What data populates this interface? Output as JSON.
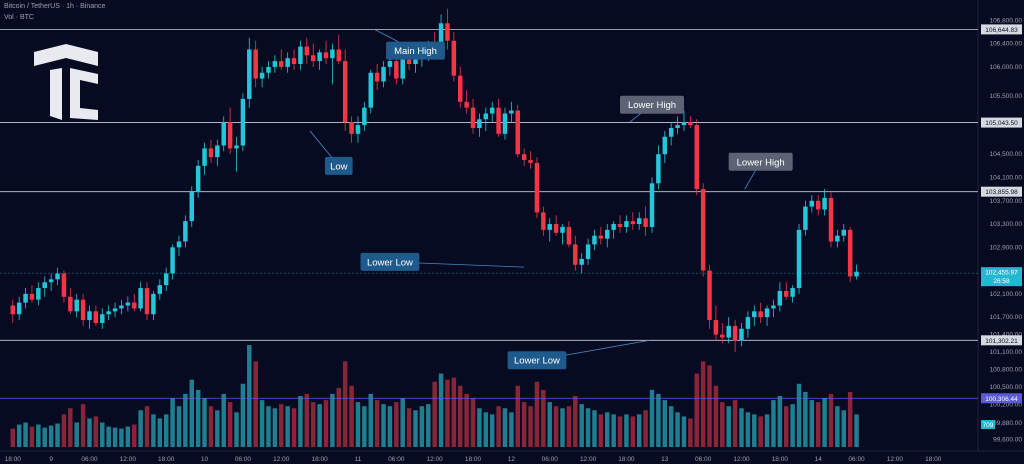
{
  "header": {
    "symbol_line": "Bitcoin / TetherUS · 1h · Binance",
    "vol_line": "Vol · BTC"
  },
  "colors": {
    "background": "#070b22",
    "up": "#26c6da",
    "down": "#f23645",
    "vol_up": "#1f7e8f",
    "vol_down": "#8a2438",
    "level_line": "#c8ccd6",
    "callout": "#1e5a8c",
    "callout_gray": "#5b6374",
    "last_price": "#22b8cf",
    "vol_line": "#5b5bd6"
  },
  "chart_data": {
    "type": "candlestick",
    "timeframe": "1h",
    "y_axis_ticks": [
      "106,800.00",
      "106,400.00",
      "106,000.00",
      "105,500.00",
      "104,500.00",
      "104,100.00",
      "103,700.00",
      "103,300.00",
      "102,900.00",
      "102,100.00",
      "101,700.00",
      "101,400.00",
      "101,100.00",
      "100,800.00",
      "100,500.00",
      "100,200.00",
      "99,880.00",
      "99,600.00"
    ],
    "y_tick_values": [
      106800,
      106400,
      106000,
      105500,
      104500,
      104100,
      103700,
      103300,
      102900,
      102100,
      101700,
      101400,
      101100,
      100800,
      100500,
      100200,
      99880,
      99600
    ],
    "x_axis_ticks": [
      "18:00",
      "9",
      "06:00",
      "12:00",
      "18:00",
      "10",
      "06:00",
      "12:00",
      "18:00",
      "11",
      "06:00",
      "12:00",
      "18:00",
      "12",
      "06:00",
      "12:00",
      "18:00",
      "13",
      "06:00",
      "12:00",
      "18:00",
      "14",
      "06:00",
      "12:00",
      "18:00"
    ],
    "x_tick_hours": [
      0,
      6,
      12,
      18,
      24,
      30,
      36,
      42,
      48,
      54,
      60,
      66,
      72,
      78,
      84,
      90,
      96,
      102,
      108,
      114,
      120,
      126,
      132,
      138,
      144
    ],
    "ylim": [
      99400,
      107150
    ],
    "xlim": [
      -2,
      151
    ],
    "price_levels": [
      {
        "value": 106644.83,
        "label": "106,644.83"
      },
      {
        "value": 105043.5,
        "label": "105,043.50"
      },
      {
        "value": 103855.98,
        "label": "103,855.98"
      },
      {
        "value": 101302.21,
        "label": "101,302.21"
      }
    ],
    "volume_level": {
      "value": 100306.44,
      "label": "100,306.44"
    },
    "last_price": {
      "value": 102455.97,
      "label": "102,455.97",
      "countdown": "26:58"
    },
    "volume_badge": "709",
    "annotations": [
      {
        "text": "Main High",
        "hour": 63,
        "price": 106280,
        "target_hour": 56.5,
        "target_price": 106650,
        "style": "blue"
      },
      {
        "text": "Low",
        "hour": 51,
        "price": 104300,
        "target_hour": 46.5,
        "target_price": 104900,
        "style": "blue"
      },
      {
        "text": "Lower High",
        "hour": 100,
        "price": 105350,
        "target_hour": 96.5,
        "target_price": 105050,
        "style": "gray"
      },
      {
        "text": "Lower High",
        "hour": 117,
        "price": 104370,
        "target_hour": 114.5,
        "target_price": 103900,
        "style": "gray"
      },
      {
        "text": "Lower Low",
        "hour": 59,
        "price": 102650,
        "target_hour": 80,
        "target_price": 102560,
        "style": "blue"
      },
      {
        "text": "Lower Low",
        "hour": 82,
        "price": 100960,
        "target_hour": 99.5,
        "target_price": 101300,
        "style": "blue"
      }
    ],
    "candles": [
      {
        "o": 101900,
        "h": 102000,
        "l": 101600,
        "c": 101750,
        "v": 90
      },
      {
        "o": 101750,
        "h": 102050,
        "l": 101650,
        "c": 101950,
        "v": 110
      },
      {
        "o": 101950,
        "h": 102200,
        "l": 101850,
        "c": 102100,
        "v": 120
      },
      {
        "o": 102100,
        "h": 102250,
        "l": 101950,
        "c": 102000,
        "v": 100
      },
      {
        "o": 102000,
        "h": 102300,
        "l": 101900,
        "c": 102200,
        "v": 110
      },
      {
        "o": 102200,
        "h": 102400,
        "l": 102050,
        "c": 102300,
        "v": 95
      },
      {
        "o": 102300,
        "h": 102450,
        "l": 102150,
        "c": 102350,
        "v": 105
      },
      {
        "o": 102350,
        "h": 102550,
        "l": 102250,
        "c": 102450,
        "v": 115
      },
      {
        "o": 102450,
        "h": 102500,
        "l": 101950,
        "c": 102050,
        "v": 160
      },
      {
        "o": 102050,
        "h": 102200,
        "l": 101750,
        "c": 101800,
        "v": 190
      },
      {
        "o": 101800,
        "h": 102100,
        "l": 101700,
        "c": 102000,
        "v": 120
      },
      {
        "o": 102000,
        "h": 102100,
        "l": 101550,
        "c": 101650,
        "v": 210
      },
      {
        "o": 101650,
        "h": 101900,
        "l": 101500,
        "c": 101800,
        "v": 140
      },
      {
        "o": 101800,
        "h": 101900,
        "l": 101550,
        "c": 101600,
        "v": 150
      },
      {
        "o": 101600,
        "h": 101850,
        "l": 101500,
        "c": 101750,
        "v": 120
      },
      {
        "o": 101750,
        "h": 101900,
        "l": 101650,
        "c": 101800,
        "v": 100
      },
      {
        "o": 101800,
        "h": 101950,
        "l": 101700,
        "c": 101850,
        "v": 95
      },
      {
        "o": 101850,
        "h": 102000,
        "l": 101750,
        "c": 101900,
        "v": 90
      },
      {
        "o": 101900,
        "h": 102050,
        "l": 101800,
        "c": 101950,
        "v": 100
      },
      {
        "o": 101950,
        "h": 102100,
        "l": 101800,
        "c": 101850,
        "v": 110
      },
      {
        "o": 101850,
        "h": 102300,
        "l": 101800,
        "c": 102200,
        "v": 180
      },
      {
        "o": 102200,
        "h": 102300,
        "l": 101650,
        "c": 101750,
        "v": 200
      },
      {
        "o": 101750,
        "h": 102150,
        "l": 101650,
        "c": 102100,
        "v": 160
      },
      {
        "o": 102100,
        "h": 102350,
        "l": 102000,
        "c": 102250,
        "v": 140
      },
      {
        "o": 102250,
        "h": 102550,
        "l": 102150,
        "c": 102450,
        "v": 160
      },
      {
        "o": 102450,
        "h": 102950,
        "l": 102350,
        "c": 102900,
        "v": 240
      },
      {
        "o": 102900,
        "h": 103100,
        "l": 102750,
        "c": 103000,
        "v": 200
      },
      {
        "o": 103000,
        "h": 103450,
        "l": 102900,
        "c": 103350,
        "v": 260
      },
      {
        "o": 103350,
        "h": 103950,
        "l": 103250,
        "c": 103850,
        "v": 330
      },
      {
        "o": 103850,
        "h": 104400,
        "l": 103750,
        "c": 104300,
        "v": 280
      },
      {
        "o": 104300,
        "h": 104700,
        "l": 104150,
        "c": 104600,
        "v": 240
      },
      {
        "o": 104600,
        "h": 104750,
        "l": 104350,
        "c": 104450,
        "v": 200
      },
      {
        "o": 104450,
        "h": 104750,
        "l": 104300,
        "c": 104650,
        "v": 180
      },
      {
        "o": 104650,
        "h": 105150,
        "l": 104550,
        "c": 105050,
        "v": 260
      },
      {
        "o": 105050,
        "h": 105300,
        "l": 104500,
        "c": 104600,
        "v": 220
      },
      {
        "o": 104600,
        "h": 104800,
        "l": 104200,
        "c": 104650,
        "v": 170
      },
      {
        "o": 104650,
        "h": 105550,
        "l": 104550,
        "c": 105450,
        "v": 310
      },
      {
        "o": 105450,
        "h": 106500,
        "l": 105300,
        "c": 106300,
        "v": 500
      },
      {
        "o": 106300,
        "h": 106450,
        "l": 105650,
        "c": 105800,
        "v": 420
      },
      {
        "o": 105800,
        "h": 106000,
        "l": 105650,
        "c": 105900,
        "v": 230
      },
      {
        "o": 105900,
        "h": 106100,
        "l": 105800,
        "c": 106000,
        "v": 200
      },
      {
        "o": 106000,
        "h": 106200,
        "l": 105900,
        "c": 106100,
        "v": 190
      },
      {
        "o": 106100,
        "h": 106300,
        "l": 105950,
        "c": 106000,
        "v": 210
      },
      {
        "o": 106000,
        "h": 106250,
        "l": 105900,
        "c": 106150,
        "v": 200
      },
      {
        "o": 106150,
        "h": 106300,
        "l": 105950,
        "c": 106050,
        "v": 190
      },
      {
        "o": 106050,
        "h": 106450,
        "l": 105950,
        "c": 106350,
        "v": 250
      },
      {
        "o": 106350,
        "h": 106500,
        "l": 106050,
        "c": 106200,
        "v": 260
      },
      {
        "o": 106200,
        "h": 106400,
        "l": 106000,
        "c": 106100,
        "v": 220
      },
      {
        "o": 106100,
        "h": 106300,
        "l": 105950,
        "c": 106250,
        "v": 210
      },
      {
        "o": 106250,
        "h": 106450,
        "l": 106050,
        "c": 106150,
        "v": 230
      },
      {
        "o": 106150,
        "h": 106400,
        "l": 105700,
        "c": 106300,
        "v": 260
      },
      {
        "o": 106300,
        "h": 106550,
        "l": 106050,
        "c": 106100,
        "v": 290
      },
      {
        "o": 106100,
        "h": 106300,
        "l": 104900,
        "c": 105050,
        "v": 420
      },
      {
        "o": 105050,
        "h": 105150,
        "l": 104700,
        "c": 104850,
        "v": 300
      },
      {
        "o": 104850,
        "h": 105150,
        "l": 104700,
        "c": 105000,
        "v": 220
      },
      {
        "o": 105000,
        "h": 105400,
        "l": 104900,
        "c": 105300,
        "v": 200
      },
      {
        "o": 105300,
        "h": 105950,
        "l": 105200,
        "c": 105900,
        "v": 260
      },
      {
        "o": 105900,
        "h": 106050,
        "l": 105600,
        "c": 105750,
        "v": 230
      },
      {
        "o": 105750,
        "h": 106100,
        "l": 105650,
        "c": 106000,
        "v": 210
      },
      {
        "o": 106000,
        "h": 106200,
        "l": 105850,
        "c": 106100,
        "v": 200
      },
      {
        "o": 106100,
        "h": 106300,
        "l": 105700,
        "c": 105800,
        "v": 220
      },
      {
        "o": 105800,
        "h": 106400,
        "l": 105700,
        "c": 106300,
        "v": 240
      },
      {
        "o": 106300,
        "h": 106400,
        "l": 105950,
        "c": 106050,
        "v": 190
      },
      {
        "o": 106050,
        "h": 106250,
        "l": 105900,
        "c": 106200,
        "v": 180
      },
      {
        "o": 106200,
        "h": 106350,
        "l": 106000,
        "c": 106250,
        "v": 200
      },
      {
        "o": 106250,
        "h": 106450,
        "l": 106100,
        "c": 106350,
        "v": 210
      },
      {
        "o": 106350,
        "h": 106600,
        "l": 106150,
        "c": 106300,
        "v": 320
      },
      {
        "o": 106300,
        "h": 106900,
        "l": 106200,
        "c": 106750,
        "v": 360
      },
      {
        "o": 106750,
        "h": 107000,
        "l": 106300,
        "c": 106450,
        "v": 330
      },
      {
        "o": 106450,
        "h": 106600,
        "l": 105750,
        "c": 105850,
        "v": 340
      },
      {
        "o": 105850,
        "h": 106000,
        "l": 105300,
        "c": 105400,
        "v": 300
      },
      {
        "o": 105400,
        "h": 105600,
        "l": 105200,
        "c": 105300,
        "v": 260
      },
      {
        "o": 105300,
        "h": 105450,
        "l": 104850,
        "c": 104950,
        "v": 240
      },
      {
        "o": 104950,
        "h": 105200,
        "l": 104800,
        "c": 105100,
        "v": 190
      },
      {
        "o": 105100,
        "h": 105300,
        "l": 104900,
        "c": 105200,
        "v": 170
      },
      {
        "o": 105200,
        "h": 105400,
        "l": 105050,
        "c": 105300,
        "v": 160
      },
      {
        "o": 105300,
        "h": 105450,
        "l": 104800,
        "c": 104850,
        "v": 200
      },
      {
        "o": 104850,
        "h": 105300,
        "l": 104750,
        "c": 105200,
        "v": 190
      },
      {
        "o": 105200,
        "h": 105400,
        "l": 105050,
        "c": 105250,
        "v": 170
      },
      {
        "o": 105250,
        "h": 105350,
        "l": 104450,
        "c": 104500,
        "v": 300
      },
      {
        "o": 104500,
        "h": 104600,
        "l": 104300,
        "c": 104400,
        "v": 220
      },
      {
        "o": 104400,
        "h": 104550,
        "l": 104250,
        "c": 104350,
        "v": 200
      },
      {
        "o": 104350,
        "h": 104450,
        "l": 103400,
        "c": 103500,
        "v": 320
      },
      {
        "o": 103500,
        "h": 103600,
        "l": 103100,
        "c": 103200,
        "v": 280
      },
      {
        "o": 103200,
        "h": 103400,
        "l": 103000,
        "c": 103300,
        "v": 220
      },
      {
        "o": 103300,
        "h": 103450,
        "l": 103100,
        "c": 103150,
        "v": 200
      },
      {
        "o": 103150,
        "h": 103300,
        "l": 102950,
        "c": 103250,
        "v": 190
      },
      {
        "o": 103250,
        "h": 103350,
        "l": 102900,
        "c": 102950,
        "v": 200
      },
      {
        "o": 102950,
        "h": 103100,
        "l": 102500,
        "c": 102600,
        "v": 250
      },
      {
        "o": 102600,
        "h": 102800,
        "l": 102450,
        "c": 102700,
        "v": 210
      },
      {
        "o": 102700,
        "h": 103050,
        "l": 102600,
        "c": 102950,
        "v": 190
      },
      {
        "o": 102950,
        "h": 103200,
        "l": 102850,
        "c": 103100,
        "v": 180
      },
      {
        "o": 103100,
        "h": 103250,
        "l": 102950,
        "c": 103050,
        "v": 160
      },
      {
        "o": 103050,
        "h": 103300,
        "l": 102900,
        "c": 103200,
        "v": 170
      },
      {
        "o": 103200,
        "h": 103350,
        "l": 103050,
        "c": 103300,
        "v": 160
      },
      {
        "o": 103300,
        "h": 103450,
        "l": 103150,
        "c": 103250,
        "v": 150
      },
      {
        "o": 103250,
        "h": 103450,
        "l": 103150,
        "c": 103350,
        "v": 160
      },
      {
        "o": 103350,
        "h": 103500,
        "l": 103200,
        "c": 103300,
        "v": 150
      },
      {
        "o": 103300,
        "h": 103500,
        "l": 103200,
        "c": 103400,
        "v": 160
      },
      {
        "o": 103400,
        "h": 103600,
        "l": 103100,
        "c": 103250,
        "v": 180
      },
      {
        "o": 103250,
        "h": 104100,
        "l": 103150,
        "c": 104000,
        "v": 280
      },
      {
        "o": 104000,
        "h": 104650,
        "l": 103900,
        "c": 104500,
        "v": 260
      },
      {
        "o": 104500,
        "h": 104900,
        "l": 104350,
        "c": 104800,
        "v": 230
      },
      {
        "o": 104800,
        "h": 105050,
        "l": 104650,
        "c": 104950,
        "v": 200
      },
      {
        "o": 104950,
        "h": 105150,
        "l": 104850,
        "c": 105000,
        "v": 170
      },
      {
        "o": 105000,
        "h": 105250,
        "l": 104900,
        "c": 105050,
        "v": 150
      },
      {
        "o": 105050,
        "h": 105150,
        "l": 104950,
        "c": 105000,
        "v": 140
      },
      {
        "o": 105000,
        "h": 105100,
        "l": 103800,
        "c": 103900,
        "v": 360
      },
      {
        "o": 103900,
        "h": 104000,
        "l": 102400,
        "c": 102500,
        "v": 420
      },
      {
        "o": 102500,
        "h": 102600,
        "l": 101500,
        "c": 101650,
        "v": 400
      },
      {
        "o": 101650,
        "h": 101900,
        "l": 101300,
        "c": 101400,
        "v": 300
      },
      {
        "o": 101400,
        "h": 101600,
        "l": 101250,
        "c": 101350,
        "v": 220
      },
      {
        "o": 101350,
        "h": 101700,
        "l": 101250,
        "c": 101550,
        "v": 200
      },
      {
        "o": 101550,
        "h": 101650,
        "l": 101100,
        "c": 101300,
        "v": 230
      },
      {
        "o": 101300,
        "h": 101600,
        "l": 101200,
        "c": 101500,
        "v": 190
      },
      {
        "o": 101500,
        "h": 101800,
        "l": 101350,
        "c": 101700,
        "v": 170
      },
      {
        "o": 101700,
        "h": 101900,
        "l": 101550,
        "c": 101800,
        "v": 160
      },
      {
        "o": 101800,
        "h": 101950,
        "l": 101600,
        "c": 101700,
        "v": 150
      },
      {
        "o": 101700,
        "h": 101900,
        "l": 101550,
        "c": 101850,
        "v": 160
      },
      {
        "o": 101850,
        "h": 102000,
        "l": 101700,
        "c": 101900,
        "v": 230
      },
      {
        "o": 101900,
        "h": 102300,
        "l": 101800,
        "c": 102150,
        "v": 250
      },
      {
        "o": 102150,
        "h": 102300,
        "l": 102000,
        "c": 102050,
        "v": 200
      },
      {
        "o": 102050,
        "h": 102250,
        "l": 101950,
        "c": 102200,
        "v": 210
      },
      {
        "o": 102200,
        "h": 103300,
        "l": 102100,
        "c": 103200,
        "v": 310
      },
      {
        "o": 103200,
        "h": 103700,
        "l": 103100,
        "c": 103600,
        "v": 270
      },
      {
        "o": 103600,
        "h": 103800,
        "l": 103500,
        "c": 103700,
        "v": 230
      },
      {
        "o": 103700,
        "h": 103800,
        "l": 103450,
        "c": 103550,
        "v": 220
      },
      {
        "o": 103550,
        "h": 103900,
        "l": 103450,
        "c": 103750,
        "v": 240
      },
      {
        "o": 103750,
        "h": 103850,
        "l": 102900,
        "c": 103000,
        "v": 260
      },
      {
        "o": 103000,
        "h": 103200,
        "l": 102900,
        "c": 103100,
        "v": 200
      },
      {
        "o": 103100,
        "h": 103300,
        "l": 103000,
        "c": 103200,
        "v": 180
      },
      {
        "o": 103200,
        "h": 103250,
        "l": 102300,
        "c": 102400,
        "v": 270
      },
      {
        "o": 102400,
        "h": 102600,
        "l": 102350,
        "c": 102480,
        "v": 160
      }
    ]
  }
}
